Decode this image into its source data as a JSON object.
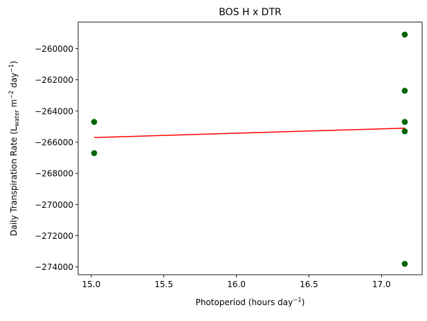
{
  "chart_data": {
    "type": "scatter",
    "title": "BOS H x DTR",
    "xlabel": {
      "text": "Photoperiod (hours day",
      "sup": "−1",
      "tail": ")"
    },
    "ylabel": {
      "parts": [
        {
          "t": "Daily Transpiration Rate (L",
          "s": "normal"
        },
        {
          "t": "water",
          "s": "sub"
        },
        {
          "t": " m",
          "s": "normal"
        },
        {
          "t": "−2",
          "s": "sup"
        },
        {
          "t": " day",
          "s": "normal"
        },
        {
          "t": "−1",
          "s": "sup"
        },
        {
          "t": ")",
          "s": "normal"
        }
      ]
    },
    "xlim": [
      14.91,
      17.28
    ],
    "ylim": [
      -274500,
      -258300
    ],
    "xticks": [
      15.0,
      15.5,
      16.0,
      16.5,
      17.0
    ],
    "xtick_labels": [
      "15.0",
      "15.5",
      "16.0",
      "16.5",
      "17.0"
    ],
    "yticks": [
      -274000,
      -272000,
      -270000,
      -268000,
      -266000,
      -264000,
      -262000,
      -260000
    ],
    "ytick_labels": [
      "−274000",
      "−272000",
      "−270000",
      "−268000",
      "−266000",
      "−264000",
      "−262000",
      "−260000"
    ],
    "series": [
      {
        "kind": "points",
        "color": "#006400",
        "points": [
          {
            "x": 15.02,
            "y": -264700
          },
          {
            "x": 15.02,
            "y": -266700
          },
          {
            "x": 17.16,
            "y": -259100
          },
          {
            "x": 17.16,
            "y": -262700
          },
          {
            "x": 17.16,
            "y": -264700
          },
          {
            "x": 17.16,
            "y": -265300
          },
          {
            "x": 17.16,
            "y": -273800
          }
        ]
      },
      {
        "kind": "fit-line",
        "color": "#ff0000",
        "points": [
          {
            "x": 15.02,
            "y": -265700
          },
          {
            "x": 17.16,
            "y": -265100
          }
        ]
      }
    ],
    "grid": false,
    "legend": "none"
  }
}
